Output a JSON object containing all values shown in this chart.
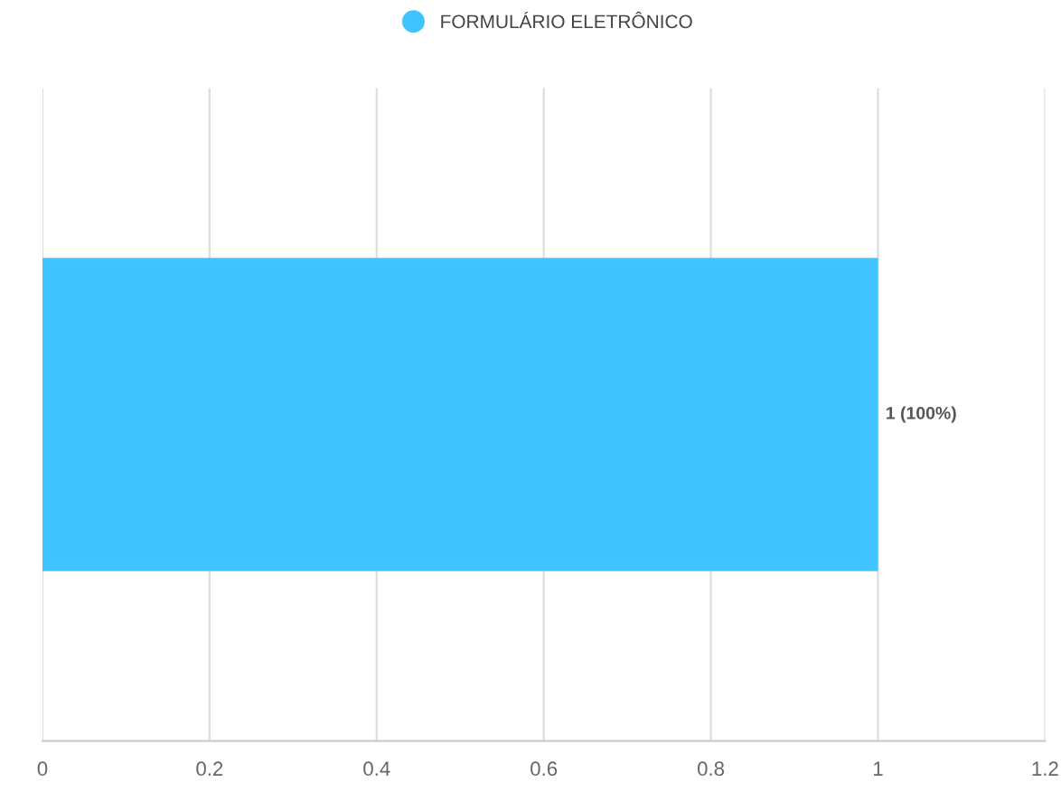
{
  "chart_data": {
    "type": "bar",
    "orientation": "horizontal",
    "categories": [
      null
    ],
    "series": [
      {
        "name": "FORMULÁRIO ELETRÔNICO",
        "color": "#40c4ff",
        "values": [
          1
        ],
        "value_labels": [
          "1 (100%)"
        ]
      }
    ],
    "xlim": [
      0,
      1.2
    ],
    "xticks": [
      0,
      0.2,
      0.4,
      0.6,
      0.8,
      1,
      1.2
    ],
    "grid": "x",
    "legend": "top",
    "tick_labels": "x"
  }
}
